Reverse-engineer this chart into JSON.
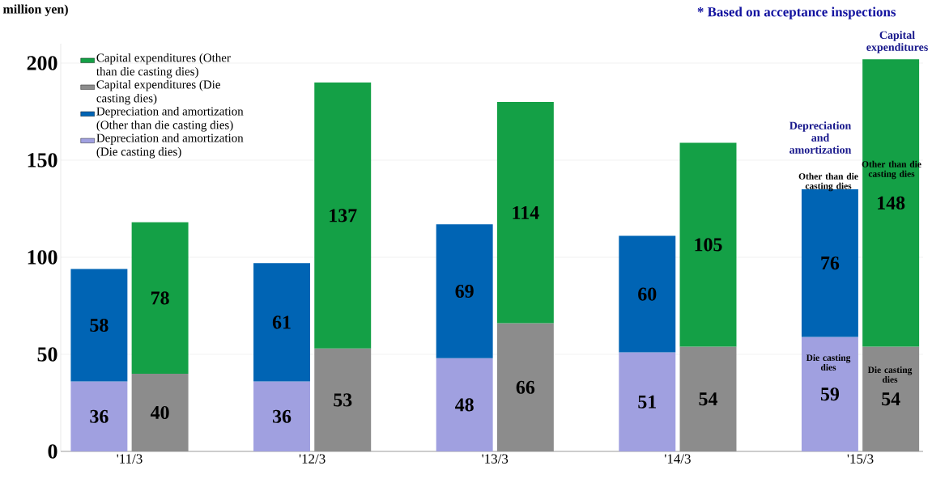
{
  "chart_data": {
    "type": "bar",
    "stacked": true,
    "ylabel": "million yen)",
    "categories": [
      "'11/3",
      null,
      null,
      "'12/3",
      null,
      null,
      "'13/3",
      null,
      null,
      "'14/3",
      null,
      null,
      "'15/3",
      null
    ],
    "series": [
      {
        "name": "Depreciation and amortization (Die casting dies)",
        "color": "#a0a0e0",
        "values": [
          36,
          null,
          null,
          36,
          null,
          null,
          48,
          null,
          null,
          51,
          null,
          null,
          59,
          null
        ]
      },
      {
        "name": "Depreciation and amortization (Other than die casting dies)",
        "color": "#0064b4",
        "values": [
          58,
          null,
          null,
          61,
          null,
          null,
          69,
          null,
          null,
          60,
          null,
          null,
          76,
          null
        ]
      },
      {
        "name": "Capital expenditures (Die casting dies)",
        "color": "#8c8c8c",
        "values": [
          null,
          40,
          null,
          null,
          53,
          null,
          null,
          66,
          null,
          null,
          54,
          null,
          null,
          54
        ]
      },
      {
        "name": "Capital expenditures (Other than die casting dies)",
        "color": "#14a046",
        "values": [
          null,
          78,
          null,
          null,
          137,
          null,
          null,
          114,
          null,
          null,
          105,
          null,
          null,
          148
        ]
      }
    ],
    "ylim": [
      0,
      210
    ],
    "yticks": [
      0,
      50,
      100,
      150,
      200
    ],
    "grid": "y",
    "legend": "top left",
    "data_labels": true,
    "annotations": [
      "* Based on acceptance inspections",
      "Depreciation and amortization",
      "Capital expenditures",
      "Other than die casting dies",
      "Other than die casting dies",
      "Die casting dies",
      "Die casting dies"
    ]
  }
}
